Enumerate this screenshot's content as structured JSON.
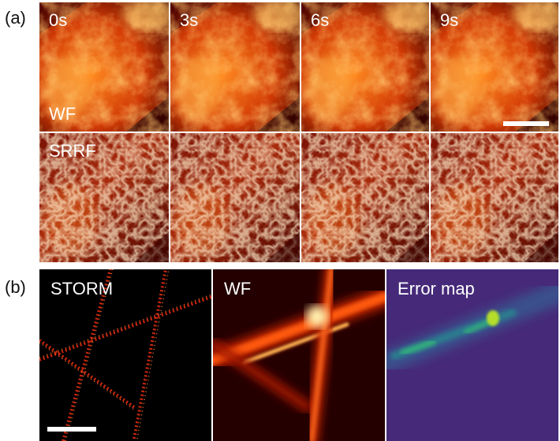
{
  "panel_labels": {
    "a": "(a)",
    "b": "(b)"
  },
  "wf_row": {
    "time_labels": [
      "0s",
      "3s",
      "6s",
      "9s"
    ],
    "row_label": "WF"
  },
  "srrf_row": {
    "row_label": "SRRF"
  },
  "panel_b": {
    "labels": [
      "STORM",
      "WF",
      "Error map"
    ]
  },
  "colors": {
    "hot_dark": "#3a0000",
    "hot_mid": "#c82800",
    "hot_bright": "#ffd27a",
    "viridis_bg": "#472a7a",
    "viridis_hi": "#b5de2b"
  }
}
